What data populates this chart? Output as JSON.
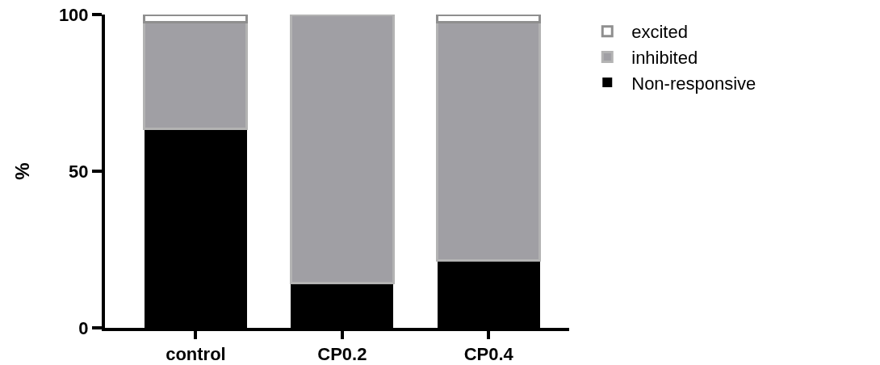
{
  "chart_data": {
    "type": "bar",
    "stacked": true,
    "categories": [
      "control",
      "CP0.2",
      "CP0.4"
    ],
    "ylabel": "%",
    "ylim": [
      0,
      100
    ],
    "yticks": [
      0,
      50,
      100
    ],
    "grid": false,
    "legend": "top right",
    "series": [
      {
        "name": "Non-responsive",
        "color": "#000000",
        "values": [
          63.5,
          14.3,
          21.6
        ]
      },
      {
        "name": "inhibited",
        "color": "#a09fa4",
        "values": [
          34,
          85.7,
          76
        ]
      },
      {
        "name": "excited",
        "color": "#ffffff",
        "values": [
          2.5,
          0,
          2.4
        ]
      }
    ]
  }
}
